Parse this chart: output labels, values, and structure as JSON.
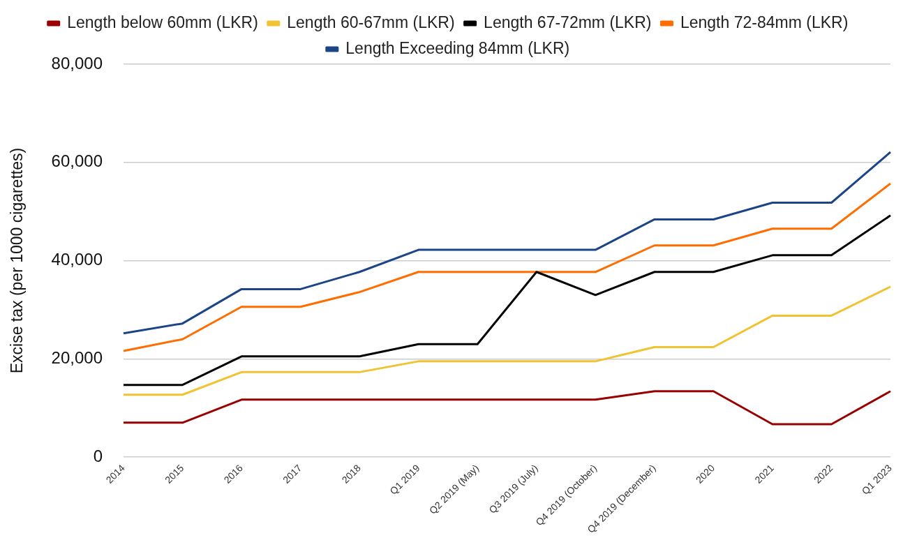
{
  "chart_data": {
    "type": "line",
    "ylabel": "Excise tax (per 1000 cigarettes)",
    "categories": [
      "2014",
      "2015",
      "2016",
      "2017",
      "2018",
      "Q1 2019",
      "Q2 2019 (May)",
      "Q3 2019 (July)",
      "Q4 2019 (October)",
      "Q4 2019 (December)",
      "2020",
      "2021",
      "2022",
      "Q1 2023"
    ],
    "series": [
      {
        "name": "Length below 60mm (LKR)",
        "color": "#990000",
        "values": [
          7000,
          7000,
          11700,
          11700,
          11700,
          11700,
          11700,
          11700,
          11700,
          13400,
          13400,
          6700,
          6700,
          13400
        ]
      },
      {
        "name": "Length 60-67mm (LKR)",
        "color": "#f1c232",
        "values": [
          12700,
          12700,
          17300,
          17300,
          17300,
          19500,
          19500,
          19500,
          19500,
          22400,
          22400,
          28800,
          28800,
          34700
        ]
      },
      {
        "name": "Length 67-72mm (LKR)",
        "color": "#000000",
        "values": [
          14700,
          14700,
          20500,
          20500,
          20500,
          23000,
          23000,
          37700,
          33000,
          37700,
          37700,
          41100,
          41100,
          49200
        ]
      },
      {
        "name": "Length 72-84mm (LKR)",
        "color": "#ff6d01",
        "values": [
          21600,
          24000,
          30600,
          30600,
          33600,
          37700,
          37700,
          37700,
          37700,
          43100,
          43100,
          46500,
          46500,
          55700
        ]
      },
      {
        "name": "Length Exceeding 84mm (LKR)",
        "color": "#1c4587",
        "values": [
          25200,
          27200,
          34200,
          34200,
          37700,
          42200,
          42200,
          42200,
          42200,
          48400,
          48400,
          51800,
          51800,
          62100
        ]
      }
    ],
    "ylim": [
      0,
      80000
    ],
    "yticks": [
      0,
      {
        "value": 20000,
        "label": "20,000"
      },
      {
        "value": 40000,
        "label": "40,000"
      },
      {
        "value": 60000,
        "label": "60,000"
      },
      {
        "value": 80000,
        "label": "80,000"
      }
    ],
    "grid": "y",
    "legend": "top",
    "marker": "none",
    "line_style": "solid"
  }
}
